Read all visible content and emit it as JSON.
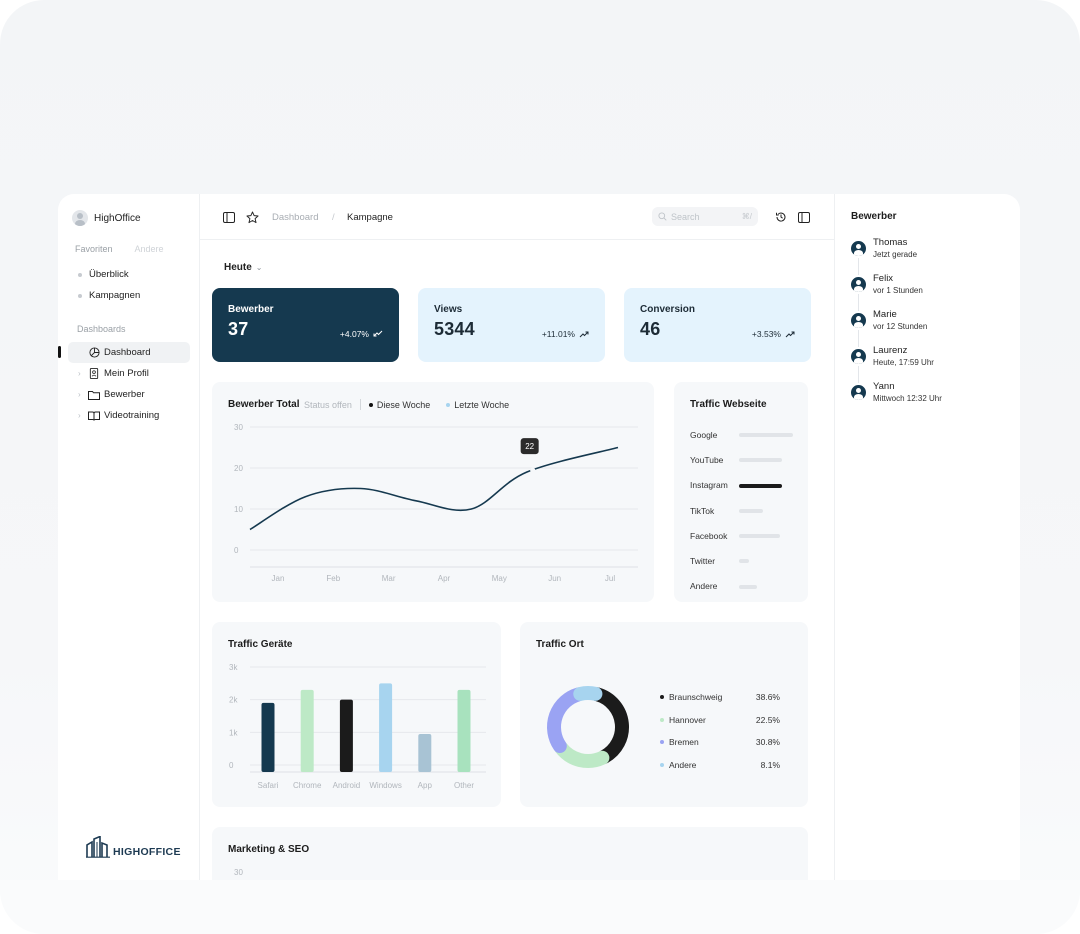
{
  "brand": {
    "name": "HighOffice",
    "logo_text": "HIGHOFFICE"
  },
  "sidebar": {
    "tabs": [
      {
        "label": "Favoriten"
      },
      {
        "label": "Andere"
      }
    ],
    "favorites": [
      {
        "label": "Überblick"
      },
      {
        "label": "Kampagnen"
      }
    ],
    "dashboards_label": "Dashboards",
    "dashboards": [
      {
        "label": "Dashboard",
        "icon": "pie-chart-icon",
        "active": true
      },
      {
        "label": "Mein Profil",
        "icon": "id-badge-icon"
      },
      {
        "label": "Bewerber",
        "icon": "folder-icon"
      },
      {
        "label": "Videotraining",
        "icon": "book-icon"
      }
    ]
  },
  "topbar": {
    "breadcrumb": [
      "Dashboard",
      "Kampagne"
    ],
    "breadcrumb_sep": "/",
    "search_placeholder": "Search",
    "search_shortcut": "⌘/"
  },
  "period": {
    "label": "Heute"
  },
  "kpis": [
    {
      "label": "Bewerber",
      "value": "37",
      "delta": "+4.07%",
      "trend": "down"
    },
    {
      "label": "Views",
      "value": "5344",
      "delta": "+11.01%",
      "trend": "up"
    },
    {
      "label": "Conversion",
      "value": "46",
      "delta": "+3.53%",
      "trend": "up"
    }
  ],
  "line_chart": {
    "title": "Bewerber Total",
    "status": "Status offen",
    "legend": [
      {
        "name": "Diese Woche",
        "color": "#111111"
      },
      {
        "name": "Letzte Woche",
        "color": "#a7d4ef"
      }
    ],
    "tooltip": "22"
  },
  "traffic_web": {
    "title": "Traffic Webseite",
    "items": [
      {
        "label": "Google",
        "value": 1.0
      },
      {
        "label": "YouTube",
        "value": 0.8
      },
      {
        "label": "Instagram",
        "value": 0.8,
        "highlight": true
      },
      {
        "label": "TikTok",
        "value": 0.45
      },
      {
        "label": "Facebook",
        "value": 0.75
      },
      {
        "label": "Twitter",
        "value": 0.18
      },
      {
        "label": "Andere",
        "value": 0.33
      }
    ]
  },
  "traffic_devices": {
    "title": "Traffic Geräte"
  },
  "traffic_location": {
    "title": "Traffic Ort",
    "items": [
      {
        "label": "Braunschweig",
        "pct": "38.6%",
        "color": "#1b1b1b"
      },
      {
        "label": "Hannover",
        "pct": "22.5%",
        "color": "#bde9c6"
      },
      {
        "label": "Bremen",
        "pct": "30.8%",
        "color": "#9aa3f3"
      },
      {
        "label": "Andere",
        "pct": "8.1%",
        "color": "#a7d4ef"
      }
    ]
  },
  "marketing": {
    "title": "Marketing & SEO",
    "first_tick": "30"
  },
  "right_panel": {
    "title": "Bewerber",
    "feed": [
      {
        "name": "Thomas",
        "time": "Jetzt gerade"
      },
      {
        "name": "Felix",
        "time": "vor 1 Stunden"
      },
      {
        "name": "Marie",
        "time": "vor 12 Stunden"
      },
      {
        "name": "Laurenz",
        "time": "Heute, 17:59 Uhr"
      },
      {
        "name": "Yann",
        "time": "Mittwoch 12:32 Uhr"
      }
    ]
  },
  "chart_data": [
    {
      "type": "line",
      "title": "Bewerber Total",
      "x": [
        "Jan",
        "Feb",
        "Mar",
        "Apr",
        "May",
        "Jun",
        "Jul"
      ],
      "yticks": [
        0,
        10,
        20,
        30
      ],
      "ylim": [
        0,
        30
      ],
      "grid": true,
      "series": [
        {
          "name": "Diese Woche",
          "values": [
            5,
            13,
            15,
            12,
            10,
            19,
            25
          ]
        }
      ],
      "annotations": [
        {
          "x": "Jun",
          "text": "22"
        }
      ]
    },
    {
      "type": "bar",
      "title": "Traffic Geräte",
      "categories": [
        "Safari",
        "Chrome",
        "Android",
        "Windows",
        "App",
        "Other"
      ],
      "values": [
        1900,
        2300,
        2000,
        2500,
        950,
        2300
      ],
      "colors": [
        "#15394f",
        "#bde9c6",
        "#1b1b1b",
        "#a7d4ef",
        "#a8c3d4",
        "#a8e2be"
      ],
      "yticks": [
        "0",
        "1k",
        "2k",
        "3k"
      ],
      "ylim": [
        0,
        3000
      ],
      "grid": true
    },
    {
      "type": "pie",
      "title": "Traffic Ort",
      "labels": [
        "Braunschweig",
        "Hannover",
        "Bremen",
        "Andere"
      ],
      "values": [
        38.6,
        22.5,
        30.8,
        8.1
      ],
      "colors": [
        "#1b1b1b",
        "#bde9c6",
        "#9aa3f3",
        "#a7d4ef"
      ],
      "legend": "right"
    }
  ]
}
